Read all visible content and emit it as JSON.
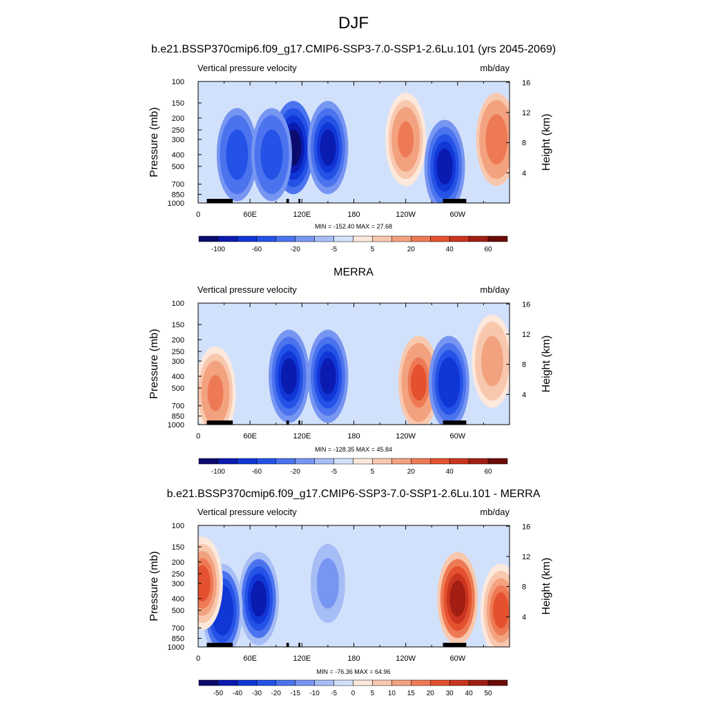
{
  "main_title": "DJF",
  "colors": {
    "model_scale": [
      "#0b0b6e",
      "#0a1bb0",
      "#1036d6",
      "#2452e6",
      "#4b73ee",
      "#7796f2",
      "#a6bdf5",
      "#d2e1fb",
      "#fde8dc",
      "#f8c8ae",
      "#f3a27f",
      "#ee7a55",
      "#e4512f",
      "#c9351e",
      "#a21e12",
      "#6b0b06"
    ],
    "diff_scale": [
      "#0b0b6e",
      "#0a1bb0",
      "#1036d6",
      "#2452e6",
      "#4b73ee",
      "#7796f2",
      "#a6bdf5",
      "#d2e1fb",
      "#fde8dc",
      "#f8c8ae",
      "#f3a27f",
      "#ee7a55",
      "#e4512f",
      "#c9351e",
      "#a21e12",
      "#6b0b06"
    ],
    "topography": "#000000"
  },
  "panels": [
    {
      "title": "b.e21.BSSP370cmip6.f09_g17.CMIP6-SSP3-7.0-SSP1-2.6Lu.101 (yrs 2045-2069)",
      "left_label": "Vertical pressure velocity",
      "right_label": "mb/day",
      "stats": "MIN = -152.40  MAX =  27.68",
      "colorbar_labels": [
        "-100",
        "-60",
        "-20",
        "-5",
        "5",
        "20",
        "40",
        "60"
      ]
    },
    {
      "title": "MERRA",
      "left_label": "Vertical pressure velocity",
      "right_label": "mb/day",
      "stats": "MIN = -128.35  MAX =  45.84",
      "colorbar_labels": [
        "-100",
        "-60",
        "-20",
        "-5",
        "5",
        "20",
        "40",
        "60"
      ]
    },
    {
      "title": "b.e21.BSSP370cmip6.f09_g17.CMIP6-SSP3-7.0-SSP1-2.6Lu.101 - MERRA",
      "left_label": "Vertical pressure velocity",
      "right_label": "mb/day",
      "stats": "MIN = -76.36  MAX =  64.96",
      "colorbar_labels": [
        "-50",
        "-40",
        "-30",
        "-20",
        "-15",
        "-10",
        "-5",
        "0",
        "5",
        "10",
        "15",
        "20",
        "30",
        "40",
        "50"
      ]
    }
  ],
  "chart_data": [
    {
      "type": "heatmap",
      "title": "b.e21.BSSP370cmip6.f09_g17.CMIP6-SSP3-7.0-SSP1-2.6Lu.101 (yrs 2045-2069)",
      "variable": "Vertical pressure velocity",
      "units": "mb/day",
      "ylabel": "Pressure (mb)",
      "y2label": "Height (km)",
      "x_ticks": [
        "0",
        "60E",
        "120E",
        "180",
        "120W",
        "60W"
      ],
      "y_ticks": [
        "100",
        "150",
        "200",
        "250",
        "300",
        "400",
        "500",
        "700",
        "850",
        "1000"
      ],
      "y2_ticks": [
        "4",
        "8",
        "12",
        "16"
      ],
      "colorbar_levels": [
        -120,
        -100,
        -80,
        -60,
        -40,
        -20,
        -10,
        -5,
        0,
        5,
        10,
        20,
        30,
        40,
        50,
        60
      ],
      "min": -152.4,
      "max": 27.68,
      "features": [
        {
          "lon": 45,
          "p": 400,
          "value": -60
        },
        {
          "lon": 110,
          "p": 350,
          "value": -110
        },
        {
          "lon": 150,
          "p": 350,
          "value": -100
        },
        {
          "lon": 85,
          "p": 400,
          "value": -60
        },
        {
          "lon": 240,
          "p": 300,
          "value": 20
        },
        {
          "lon": 285,
          "p": 500,
          "value": -90
        },
        {
          "lon": 345,
          "p": 300,
          "value": 25
        }
      ]
    },
    {
      "type": "heatmap",
      "title": "MERRA",
      "variable": "Vertical pressure velocity",
      "units": "mb/day",
      "ylabel": "Pressure (mb)",
      "y2label": "Height (km)",
      "x_ticks": [
        "0",
        "60E",
        "120E",
        "180",
        "120W",
        "60W"
      ],
      "y_ticks": [
        "100",
        "150",
        "200",
        "250",
        "300",
        "400",
        "500",
        "700",
        "850",
        "1000"
      ],
      "y2_ticks": [
        "4",
        "8",
        "12",
        "16"
      ],
      "colorbar_levels": [
        -120,
        -100,
        -80,
        -60,
        -40,
        -20,
        -10,
        -5,
        0,
        5,
        10,
        20,
        30,
        40,
        50,
        60
      ],
      "min": -128.35,
      "max": 45.84,
      "features": [
        {
          "lon": 105,
          "p": 400,
          "value": -90
        },
        {
          "lon": 150,
          "p": 400,
          "value": -90
        },
        {
          "lon": 255,
          "p": 450,
          "value": 30
        },
        {
          "lon": 290,
          "p": 450,
          "value": -80
        },
        {
          "lon": 20,
          "p": 550,
          "value": 20
        },
        {
          "lon": 340,
          "p": 300,
          "value": 15
        }
      ]
    },
    {
      "type": "heatmap",
      "title": "b.e21.BSSP370cmip6.f09_g17.CMIP6-SSP3-7.0-SSP1-2.6Lu.101 - MERRA",
      "variable": "Vertical pressure velocity",
      "units": "mb/day",
      "ylabel": "Pressure (mb)",
      "y2label": "Height (km)",
      "x_ticks": [
        "0",
        "60E",
        "120E",
        "180",
        "120W",
        "60W"
      ],
      "y_ticks": [
        "100",
        "150",
        "200",
        "250",
        "300",
        "400",
        "500",
        "700",
        "850",
        "1000"
      ],
      "y2_ticks": [
        "4",
        "8",
        "12",
        "16"
      ],
      "colorbar_levels": [
        -60,
        -50,
        -40,
        -30,
        -20,
        -15,
        -10,
        -5,
        0,
        5,
        10,
        15,
        20,
        30,
        40,
        50
      ],
      "min": -76.36,
      "max": 64.96,
      "features": [
        {
          "lon": 70,
          "p": 400,
          "value": -50
        },
        {
          "lon": 28,
          "p": 500,
          "value": -40
        },
        {
          "lon": 5,
          "p": 300,
          "value": 20
        },
        {
          "lon": 300,
          "p": 400,
          "value": 40
        },
        {
          "lon": 350,
          "p": 500,
          "value": 20
        },
        {
          "lon": 150,
          "p": 300,
          "value": -15
        }
      ]
    }
  ]
}
